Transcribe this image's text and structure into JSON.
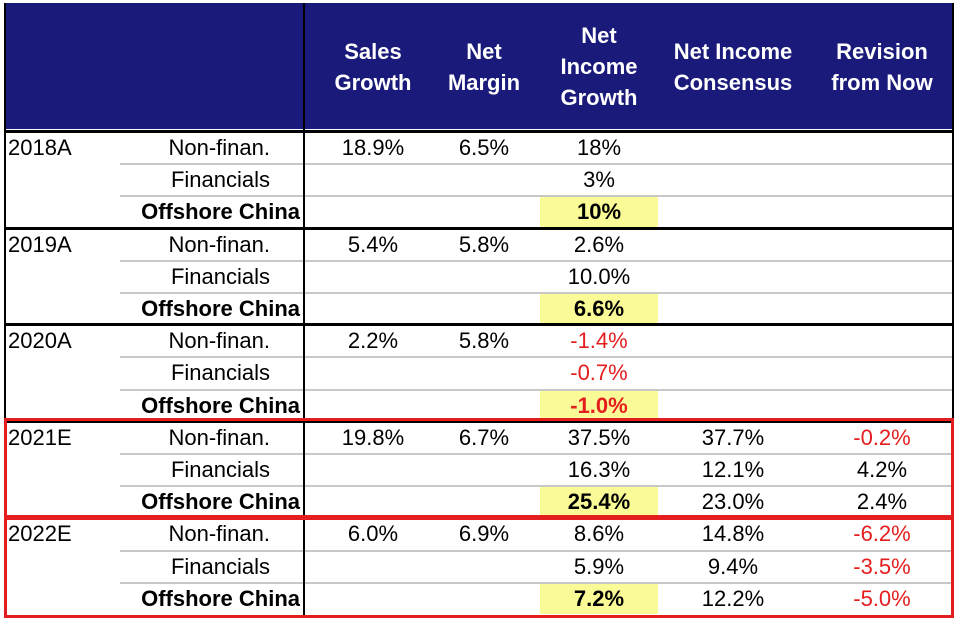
{
  "columns": {
    "sales_growth": "Sales\nGrowth",
    "net_margin": "Net\nMargin",
    "ni_growth": "Net\nIncome\nGrowth",
    "ni_consensus": "Net Income\nConsensus",
    "revision": "Revision\nfrom Now"
  },
  "colors": {
    "header_bg": "#1a1a7a",
    "negative": "#e41e1e",
    "highlight": "#fafa96",
    "red_box": "#e41e1e"
  },
  "chart_data": {
    "type": "table",
    "rows": [
      {
        "year": "2018A",
        "segment": "Non-finan.",
        "sales_growth": "18.9%",
        "net_margin": "6.5%",
        "ni_growth": "18%",
        "ni_consensus": "",
        "revision": ""
      },
      {
        "year": "",
        "segment": "Financials",
        "sales_growth": "",
        "net_margin": "",
        "ni_growth": "3%",
        "ni_consensus": "",
        "revision": ""
      },
      {
        "year": "",
        "segment": "Offshore China",
        "sales_growth": "",
        "net_margin": "",
        "ni_growth": "10%",
        "ni_consensus": "",
        "revision": ""
      },
      {
        "year": "2019A",
        "segment": "Non-finan.",
        "sales_growth": "5.4%",
        "net_margin": "5.8%",
        "ni_growth": "2.6%",
        "ni_consensus": "",
        "revision": ""
      },
      {
        "year": "",
        "segment": "Financials",
        "sales_growth": "",
        "net_margin": "",
        "ni_growth": "10.0%",
        "ni_consensus": "",
        "revision": ""
      },
      {
        "year": "",
        "segment": "Offshore China",
        "sales_growth": "",
        "net_margin": "",
        "ni_growth": "6.6%",
        "ni_consensus": "",
        "revision": ""
      },
      {
        "year": "2020A",
        "segment": "Non-finan.",
        "sales_growth": "2.2%",
        "net_margin": "5.8%",
        "ni_growth": "-1.4%",
        "ni_consensus": "",
        "revision": ""
      },
      {
        "year": "",
        "segment": "Financials",
        "sales_growth": "",
        "net_margin": "",
        "ni_growth": "-0.7%",
        "ni_consensus": "",
        "revision": ""
      },
      {
        "year": "",
        "segment": "Offshore China",
        "sales_growth": "",
        "net_margin": "",
        "ni_growth": "-1.0%",
        "ni_consensus": "",
        "revision": ""
      },
      {
        "year": "2021E",
        "segment": "Non-finan.",
        "sales_growth": "19.8%",
        "net_margin": "6.7%",
        "ni_growth": "37.5%",
        "ni_consensus": "37.7%",
        "revision": "-0.2%"
      },
      {
        "year": "",
        "segment": "Financials",
        "sales_growth": "",
        "net_margin": "",
        "ni_growth": "16.3%",
        "ni_consensus": "12.1%",
        "revision": "4.2%"
      },
      {
        "year": "",
        "segment": "Offshore China",
        "sales_growth": "",
        "net_margin": "",
        "ni_growth": "25.4%",
        "ni_consensus": "23.0%",
        "revision": "2.4%"
      },
      {
        "year": "2022E",
        "segment": "Non-finan.",
        "sales_growth": "6.0%",
        "net_margin": "6.9%",
        "ni_growth": "8.6%",
        "ni_consensus": "14.8%",
        "revision": "-6.2%"
      },
      {
        "year": "",
        "segment": "Financials",
        "sales_growth": "",
        "net_margin": "",
        "ni_growth": "5.9%",
        "ni_consensus": "9.4%",
        "revision": "-3.5%"
      },
      {
        "year": "",
        "segment": "Offshore China",
        "sales_growth": "",
        "net_margin": "",
        "ni_growth": "7.2%",
        "ni_consensus": "12.2%",
        "revision": "-5.0%"
      }
    ],
    "negative_values_in_red": true
  }
}
